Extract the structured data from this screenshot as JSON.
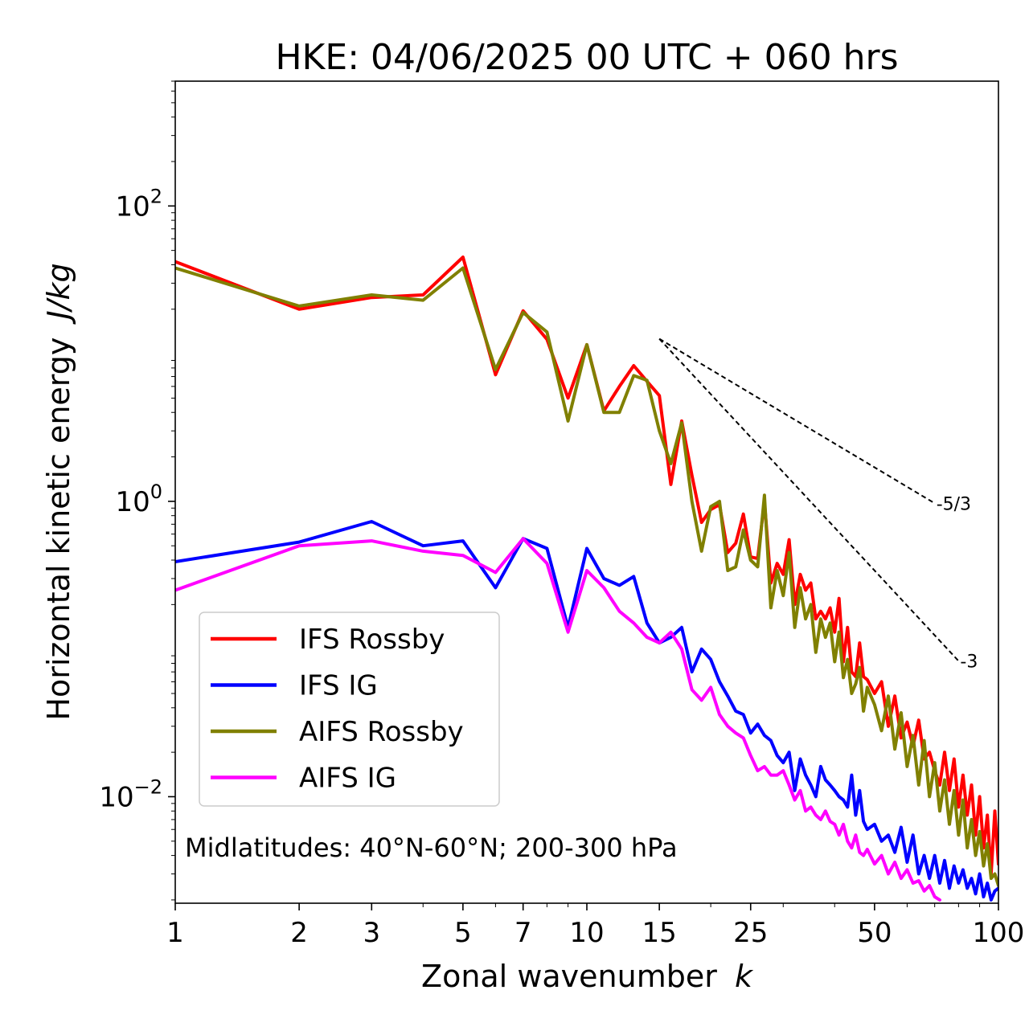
{
  "chart_data": {
    "type": "line",
    "title": "HKE: 04/06/2025 00 UTC + 060 hrs",
    "xlabel": "Zonal wavenumber",
    "xlabel_var": "k",
    "ylabel": "Horizontal kinetic energy",
    "ylabel_unit": "J/kg",
    "x_scale": "log",
    "y_scale": "log",
    "xlim": [
      1,
      100
    ],
    "ylim": [
      0.0019,
      700
    ],
    "x_ticks": [
      1,
      2,
      3,
      5,
      7,
      10,
      15,
      25,
      50,
      100
    ],
    "x_tick_labels": [
      "1",
      "2",
      "3",
      "5",
      "7",
      "10",
      "15",
      "25",
      "50",
      "100"
    ],
    "y_ticks": [
      {
        "value": 100,
        "base": "10",
        "exp": "2"
      },
      {
        "value": 1,
        "base": "10",
        "exp": "0"
      },
      {
        "value": 0.01,
        "base": "10",
        "exp": "−2"
      }
    ],
    "grid": false,
    "legend_position": "lower-left",
    "annotation": "Midlatitudes: 40°N-60°N; 200-300 hPa",
    "reference_lines": [
      {
        "label": "-5/3",
        "slope": -1.6667,
        "x": [
          15,
          70
        ],
        "y": [
          12.6,
          0.97
        ]
      },
      {
        "label": "-3",
        "slope": -3,
        "x": [
          15,
          80
        ],
        "y": [
          12.6,
          0.083
        ]
      }
    ],
    "series": [
      {
        "name": "IFS Rossby",
        "color": "#ff0000",
        "x": [
          1,
          2,
          3,
          4,
          5,
          6,
          7,
          8,
          9,
          10,
          11,
          12,
          13,
          14,
          15,
          16,
          17,
          18,
          19,
          20,
          21,
          22,
          23,
          24,
          25,
          26,
          27,
          28,
          29,
          30,
          31,
          32,
          33,
          34,
          35,
          36,
          37,
          38,
          39,
          40,
          41,
          42,
          43,
          44,
          45,
          46,
          47,
          48,
          50,
          52,
          54,
          56,
          58,
          60,
          62,
          64,
          66,
          68,
          70,
          72,
          74,
          76,
          78,
          80,
          82,
          84,
          86,
          88,
          90,
          92,
          94,
          96,
          98,
          100
        ],
        "y": [
          42,
          20,
          24,
          25,
          45,
          7.2,
          19.5,
          12.5,
          5.0,
          11.5,
          4.1,
          6.0,
          8.3,
          6.5,
          5.2,
          1.3,
          3.5,
          1.5,
          0.72,
          0.88,
          0.95,
          0.45,
          0.52,
          0.82,
          0.42,
          0.41,
          1.0,
          0.28,
          0.38,
          0.32,
          0.55,
          0.2,
          0.32,
          0.25,
          0.28,
          0.16,
          0.18,
          0.16,
          0.19,
          0.13,
          0.22,
          0.082,
          0.14,
          0.07,
          0.065,
          0.11,
          0.065,
          0.062,
          0.05,
          0.06,
          0.03,
          0.048,
          0.025,
          0.032,
          0.022,
          0.033,
          0.018,
          0.02,
          0.015,
          0.012,
          0.02,
          0.011,
          0.018,
          0.0085,
          0.014,
          0.0075,
          0.012,
          0.0055,
          0.01,
          0.0045,
          0.0075,
          0.003,
          0.008,
          0.0035
        ]
      },
      {
        "name": "IFS IG",
        "color": "#0000ff",
        "x": [
          1,
          2,
          3,
          4,
          5,
          6,
          7,
          8,
          9,
          10,
          11,
          12,
          13,
          14,
          15,
          16,
          17,
          18,
          19,
          20,
          21,
          22,
          23,
          24,
          25,
          26,
          27,
          28,
          29,
          30,
          31,
          32,
          33,
          34,
          35,
          36,
          37,
          38,
          39,
          40,
          41,
          42,
          43,
          44,
          45,
          46,
          47,
          48,
          50,
          52,
          54,
          56,
          58,
          60,
          62,
          64,
          66,
          68,
          70,
          72,
          74,
          76,
          78,
          80,
          82,
          84,
          86,
          88,
          90,
          92,
          94,
          96,
          98,
          100
        ],
        "y": [
          0.39,
          0.53,
          0.73,
          0.5,
          0.54,
          0.26,
          0.56,
          0.48,
          0.14,
          0.48,
          0.3,
          0.27,
          0.31,
          0.15,
          0.11,
          0.12,
          0.14,
          0.07,
          0.1,
          0.085,
          0.06,
          0.048,
          0.038,
          0.036,
          0.027,
          0.031,
          0.026,
          0.024,
          0.019,
          0.017,
          0.02,
          0.011,
          0.018,
          0.014,
          0.012,
          0.01,
          0.016,
          0.013,
          0.012,
          0.011,
          0.01,
          0.0095,
          0.0085,
          0.014,
          0.0075,
          0.011,
          0.0068,
          0.006,
          0.0065,
          0.005,
          0.0055,
          0.0042,
          0.0062,
          0.0036,
          0.0055,
          0.003,
          0.004,
          0.0028,
          0.004,
          0.0026,
          0.0037,
          0.0024,
          0.0034,
          0.0026,
          0.0032,
          0.0024,
          0.0028,
          0.0022,
          0.003,
          0.0021,
          0.0026,
          0.002,
          0.0023,
          0.0024
        ]
      },
      {
        "name": "AIFS Rossby",
        "color": "#808000",
        "x": [
          1,
          2,
          3,
          4,
          5,
          6,
          7,
          8,
          9,
          10,
          11,
          12,
          13,
          14,
          15,
          16,
          17,
          18,
          19,
          20,
          21,
          22,
          23,
          24,
          25,
          26,
          27,
          28,
          29,
          30,
          31,
          32,
          33,
          34,
          35,
          36,
          37,
          38,
          39,
          40,
          41,
          42,
          43,
          44,
          45,
          46,
          47,
          48,
          50,
          52,
          54,
          56,
          58,
          60,
          62,
          64,
          66,
          68,
          70,
          72,
          74,
          76,
          78,
          80,
          82,
          84,
          86,
          88,
          90,
          92,
          94,
          96,
          98,
          100
        ],
        "y": [
          38,
          21,
          25,
          23,
          38,
          7.8,
          19,
          14,
          3.5,
          11.5,
          4.0,
          4.0,
          7.1,
          6.6,
          3.0,
          1.8,
          3.4,
          1.0,
          0.46,
          0.92,
          1.0,
          0.34,
          0.36,
          0.64,
          0.4,
          0.36,
          1.1,
          0.19,
          0.34,
          0.23,
          0.45,
          0.14,
          0.26,
          0.16,
          0.2,
          0.095,
          0.16,
          0.12,
          0.15,
          0.082,
          0.13,
          0.064,
          0.085,
          0.05,
          0.058,
          0.075,
          0.038,
          0.055,
          0.042,
          0.028,
          0.048,
          0.021,
          0.037,
          0.016,
          0.026,
          0.012,
          0.024,
          0.01,
          0.017,
          0.008,
          0.013,
          0.0065,
          0.011,
          0.0055,
          0.0095,
          0.0045,
          0.007,
          0.004,
          0.0058,
          0.0034,
          0.0048,
          0.0028,
          0.003,
          0.0025
        ]
      },
      {
        "name": "AIFS IG",
        "color": "#ff00ff",
        "x": [
          1,
          2,
          3,
          4,
          5,
          6,
          7,
          8,
          9,
          10,
          11,
          12,
          13,
          14,
          15,
          16,
          17,
          18,
          19,
          20,
          21,
          22,
          23,
          24,
          25,
          26,
          27,
          28,
          29,
          30,
          31,
          32,
          33,
          34,
          35,
          36,
          37,
          38,
          39,
          40,
          41,
          42,
          43,
          44,
          45,
          46,
          47,
          48,
          50,
          52,
          54,
          56,
          58,
          60,
          62,
          64,
          66,
          68,
          70,
          72
        ],
        "y": [
          0.25,
          0.5,
          0.54,
          0.46,
          0.43,
          0.33,
          0.56,
          0.38,
          0.13,
          0.34,
          0.26,
          0.18,
          0.15,
          0.12,
          0.11,
          0.13,
          0.1,
          0.053,
          0.045,
          0.055,
          0.036,
          0.03,
          0.027,
          0.025,
          0.019,
          0.015,
          0.016,
          0.014,
          0.014,
          0.015,
          0.012,
          0.0095,
          0.011,
          0.008,
          0.0085,
          0.0075,
          0.007,
          0.008,
          0.0068,
          0.0065,
          0.0055,
          0.0065,
          0.005,
          0.0045,
          0.0055,
          0.0042,
          0.004,
          0.0044,
          0.0035,
          0.004,
          0.003,
          0.0036,
          0.0028,
          0.0032,
          0.0026,
          0.0027,
          0.0023,
          0.0025,
          0.0021,
          0.002
        ]
      }
    ]
  }
}
